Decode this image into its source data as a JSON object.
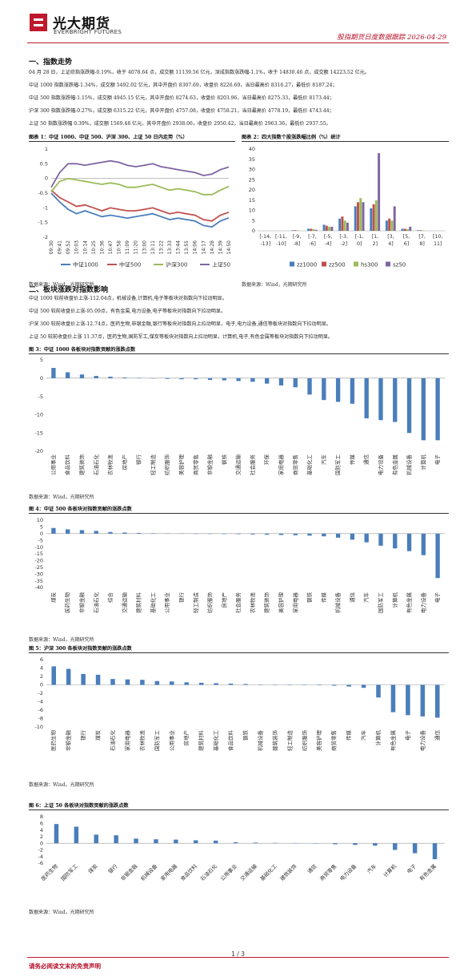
{
  "header": {
    "company_cn": "光大期货",
    "company_en": "EVERBRIGHT FUTURES",
    "report_title": "股指期货日度数据跟踪 2026-04-29"
  },
  "section1": {
    "title": "一、指数走势",
    "paras": [
      "04 月 28 日，上证综指涨跌幅-0.19%，收于 4078.64 点，成交额 11139.56 亿元，深成指数涨跌幅-1.1%，收于 14830.46 点，成交额 14223.52 亿元。",
      "中证 1000 指数涨跌幅-1.34%，成交额 5492.02 亿元，其中开盘价 8307.69，收盘价 8226.69，当日最高价 8316.27，最低价 8187.24；",
      "中证 500 指数涨跌幅-1.15%，成交额 4945.15 亿元，其中开盘价 8274.63，收盘价 8203.96，当日最高价 8275.33，最低价 8173.44；",
      "沪深 300 指数涨跌幅-0.27%，成交额 6315.22 亿元，其中开盘价 4757.08，收盘价 4758.21，当日最高价 4778.19，最低价 4743.44；",
      "上证 50 指数涨跌幅 0.39%，成交额 1569.48 亿元，其中开盘价 2938.06，收盘价 2950.42，当日最高价 2963.36，最低价 2937.55。"
    ]
  },
  "fig1": {
    "title": "图表 1：中证 1000、中证 500、沪深 300、上证 50 日内走势（%）",
    "source": "数据来源：Wind，光期研究所"
  },
  "fig2": {
    "title": "图表 2：四大指数个股涨跌幅比例（%）统计",
    "source": "数据来源：Wind，光期研究所"
  },
  "section2": {
    "title": "二、板块涨跌对指数影响",
    "paras": [
      "中证 1000 较前收盘价上涨-112.04点，机械设备,计算机,电子等板块对指数向下拉动明显。",
      "中证 500 较前收盘价上涨-95.09点，有色金属,电力设备,电子等板块对指数向下拉动明显。",
      "沪深 300 较前收盘价上涨-12.74点，医药生物,非银金融,银行等板块对指数向上拉动明显，电子,电力设备,通信等板块对指数向下拉动明显。",
      "上证 50 较前收盘价上涨 11.37点，医药生物,国防军工,煤炭等板块对指数向上拉动明显，计算机,电子,有色金属等板块对指数向下拉动明显。"
    ]
  },
  "fig3": {
    "title": "图 3：中证 1000 各板块对指数贡献的涨跌点数",
    "source": "数据来源：Wind，光期研究所"
  },
  "fig4": {
    "title": "图 4：中证 500 各板块对指数贡献的涨跌点数",
    "source": "数据来源：Wind，光期研究所"
  },
  "fig5": {
    "title": "图 5：沪深 300 各板块对指数贡献的涨跌点数",
    "source": "数据来源：Wind，光期研究所"
  },
  "fig6": {
    "title": "图 6：上证 50 各板块对指数贡献的涨跌点数",
    "source": "数据来源：Wind，光期研究所"
  },
  "footer": {
    "page": "1 / 3",
    "disclaimer": "请务必阅读文末的免责声明"
  },
  "colors": {
    "brand_red": "#c0182c",
    "bar_blue": "#4a7ebb"
  },
  "chart_data": [
    {
      "id": "fig1",
      "type": "line",
      "x": [
        "09:30",
        "09:41",
        "09:52",
        "10:03",
        "10:14",
        "10:25",
        "10:36",
        "10:47",
        "10:58",
        "11:09",
        "11:20",
        "13:00",
        "13:11",
        "13:22",
        "13:33",
        "13:44",
        "13:55",
        "14:06",
        "14:17",
        "14:28",
        "14:39",
        "14:50"
      ],
      "ylim": [
        -2,
        1
      ],
      "yticks": [
        1,
        0.5,
        0,
        -0.5,
        -1,
        -1.5,
        -2
      ],
      "series": [
        {
          "name": "中证1000",
          "color": "#4a7ebb",
          "values": [
            -0.5,
            -0.8,
            -1.05,
            -1.2,
            -1.1,
            -1.2,
            -1.3,
            -1.25,
            -1.3,
            -1.35,
            -1.3,
            -1.25,
            -1.2,
            -1.3,
            -1.4,
            -1.35,
            -1.4,
            -1.45,
            -1.6,
            -1.65,
            -1.45,
            -1.34
          ]
        },
        {
          "name": "中证500",
          "color": "#c0504d",
          "values": [
            -0.4,
            -0.65,
            -0.8,
            -0.95,
            -0.9,
            -1.0,
            -1.1,
            -1.0,
            -1.05,
            -1.1,
            -1.1,
            -1.05,
            -1.0,
            -1.1,
            -1.2,
            -1.15,
            -1.2,
            -1.25,
            -1.4,
            -1.45,
            -1.25,
            -1.15
          ]
        },
        {
          "name": "沪深300",
          "color": "#9bbb59",
          "values": [
            -0.45,
            -0.1,
            0.0,
            -0.05,
            -0.1,
            -0.15,
            -0.2,
            -0.15,
            -0.2,
            -0.3,
            -0.3,
            -0.25,
            -0.2,
            -0.3,
            -0.4,
            -0.35,
            -0.4,
            -0.45,
            -0.55,
            -0.55,
            -0.4,
            -0.27
          ]
        },
        {
          "name": "上证50",
          "color": "#8064a2",
          "values": [
            -0.3,
            0.2,
            0.5,
            0.5,
            0.45,
            0.5,
            0.55,
            0.6,
            0.55,
            0.45,
            0.4,
            0.45,
            0.5,
            0.4,
            0.35,
            0.3,
            0.25,
            0.2,
            0.1,
            0.15,
            0.3,
            0.39
          ]
        }
      ]
    },
    {
      "id": "fig2",
      "type": "bar",
      "categories": [
        "[-14,-13]",
        "[-11,-10]",
        "[-9,-8]",
        "[-7,-6]",
        "[-5,-4]",
        "[-3,-2]",
        "[-1,0]",
        "[1,2]",
        "[3,4]",
        "[5,6]",
        "[7,8]",
        "[10,11]"
      ],
      "ylim": [
        0,
        40
      ],
      "yticks": [
        0,
        5,
        10,
        15,
        20,
        25,
        30,
        35,
        40
      ],
      "series": [
        {
          "name": "zz1000",
          "color": "#4a7ebb",
          "values": [
            0,
            0,
            0.3,
            1,
            3,
            6,
            12,
            11,
            5,
            1,
            0.3,
            0
          ]
        },
        {
          "name": "zz500",
          "color": "#c0504d",
          "values": [
            0,
            0,
            0.3,
            1,
            2.5,
            7,
            14,
            13,
            6,
            1,
            0.3,
            0
          ]
        },
        {
          "name": "hs300",
          "color": "#9bbb59",
          "values": [
            0,
            0,
            0.2,
            0.8,
            2,
            5,
            16,
            15,
            5,
            0.8,
            0.2,
            0
          ]
        },
        {
          "name": "sz50",
          "color": "#8064a2",
          "values": [
            0,
            0,
            0,
            0.5,
            2,
            4,
            14,
            38,
            12,
            2,
            0,
            0
          ]
        }
      ]
    },
    {
      "id": "fig3",
      "type": "bar",
      "categories": [
        "公用事业",
        "食品饮料",
        "建筑装饰",
        "石油石化",
        "农林牧渔",
        "房地产",
        "银行",
        "轻工制造",
        "纺织服饰",
        "美容护理",
        "商贸零售",
        "非银金融",
        "钢铁",
        "交通运输",
        "社会服务",
        "环保",
        "家用电器",
        "商贸零售",
        "基础化工",
        "汽车",
        "国防军工",
        "传媒",
        "通信",
        "电力设备",
        "有色金属",
        "机械设备",
        "计算机",
        "电子"
      ],
      "values": [
        2.8,
        1.6,
        1.0,
        0.6,
        0.4,
        0.2,
        0.1,
        -0.1,
        -0.2,
        -0.3,
        -0.3,
        -0.5,
        -0.6,
        -0.8,
        -1.0,
        -1.5,
        -2.0,
        -2.5,
        -4.5,
        -6.0,
        -6.5,
        -7.0,
        -11.0,
        -11.5,
        -12.0,
        -15.0,
        -17.0,
        -17.0
      ],
      "ylim": [
        -20,
        5
      ],
      "yticks": [
        5,
        0,
        -5,
        -10,
        -15,
        -20
      ]
    },
    {
      "id": "fig4",
      "type": "bar",
      "categories": [
        "煤炭",
        "医药生物",
        "非银金融",
        "石油石化",
        "综合",
        "交通运输",
        "建筑材料",
        "基础化工",
        "公用事业",
        "银行",
        "轻工制造",
        "纺织服饰",
        "房地产",
        "社会服务",
        "农林牧渔",
        "建筑装饰",
        "美容护理",
        "家用电器",
        "钢铁",
        "传媒",
        "机械设备",
        "通信",
        "汽车",
        "国防军工",
        "计算机",
        "有色金属",
        "电力设备",
        "电子"
      ],
      "values": [
        4.2,
        3.2,
        2.6,
        2.0,
        1.2,
        0.8,
        0.5,
        0.3,
        0.2,
        0.1,
        -0.1,
        -0.2,
        -0.3,
        -0.4,
        -0.6,
        -0.8,
        -1.0,
        -1.2,
        -1.5,
        -2.0,
        -3.0,
        -4.5,
        -6.5,
        -9.0,
        -11.0,
        -13.0,
        -16.0,
        -33.0
      ],
      "ylim": [
        -40,
        10
      ],
      "yticks": [
        10,
        5,
        0,
        -5,
        -10,
        -15,
        -20,
        -25,
        -30,
        -35,
        -40
      ]
    },
    {
      "id": "fig5",
      "type": "bar",
      "categories": [
        "医药生物",
        "非银金融",
        "银行",
        "煤炭",
        "石油石化",
        "家用电器",
        "农林牧渔",
        "国防军工",
        "公用事业",
        "房地产",
        "建筑材料",
        "基础化工",
        "食品饮料",
        "钢铁",
        "机械设备",
        "建筑装饰",
        "轻工制造",
        "纺织服饰",
        "美容护理",
        "商贸零售",
        "传媒",
        "汽车",
        "计算机",
        "有色金属",
        "电子",
        "电力设备",
        "通信"
      ],
      "values": [
        4.4,
        3.8,
        2.6,
        2.4,
        1.4,
        1.3,
        1.2,
        0.9,
        0.8,
        0.6,
        0.5,
        0.4,
        0.3,
        0.2,
        0.0,
        0.0,
        0.0,
        -0.05,
        -0.1,
        -0.2,
        -0.4,
        -0.7,
        -3.0,
        -6.5,
        -7.2,
        -7.5,
        -7.8
      ],
      "ylim": [
        -10,
        6
      ],
      "yticks": [
        6,
        4,
        2,
        0,
        -2,
        -4,
        -6,
        -8,
        -10
      ]
    },
    {
      "id": "fig6",
      "type": "bar",
      "categories": [
        "医药生物",
        "国防军工",
        "煤炭",
        "银行",
        "非银金融",
        "机械设备",
        "家用电器",
        "食品饮料",
        "石油石化",
        "公用事业",
        "交通运输",
        "基础化工",
        "建筑装饰",
        "通信",
        "商贸零售",
        "电力设备",
        "汽车",
        "计算机",
        "电子",
        "有色金属"
      ],
      "values": [
        5.8,
        5.0,
        2.6,
        2.4,
        1.4,
        1.2,
        1.1,
        0.9,
        0.8,
        0.3,
        0.2,
        0.1,
        0.05,
        -0.1,
        -0.3,
        -0.5,
        -0.7,
        -2.0,
        -3.0,
        -4.8
      ],
      "ylim": [
        -6,
        8
      ],
      "yticks": [
        8,
        6,
        4,
        2,
        0,
        -2,
        -4,
        -6
      ]
    }
  ]
}
